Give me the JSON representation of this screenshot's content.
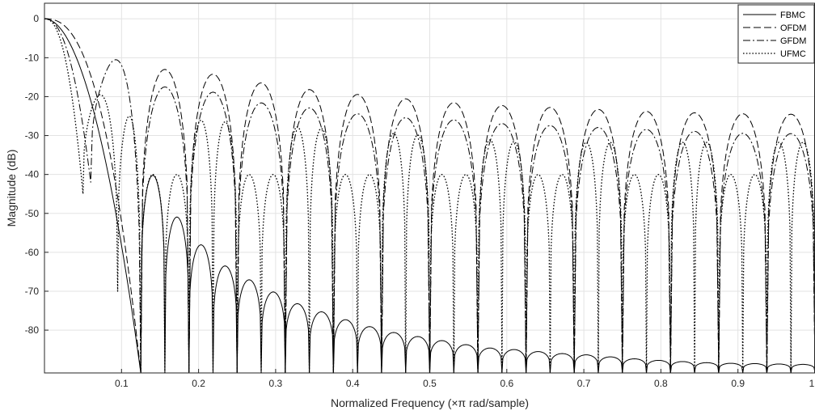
{
  "chart_data": {
    "type": "line",
    "title": "",
    "xlabel": "Normalized Frequency (×π rad/sample)",
    "ylabel": "Magnitude (dB)",
    "xlim": [
      0,
      1
    ],
    "ylim": [
      -91,
      4
    ],
    "grid": true,
    "legend_position": "top-right",
    "x_ticks": [
      0.1,
      0.2,
      0.3,
      0.4,
      0.5,
      0.6,
      0.7,
      0.8,
      0.9,
      1
    ],
    "x_tick_labels": [
      "0.1",
      "0.2",
      "0.3",
      "0.4",
      "0.5",
      "0.6",
      "0.7",
      "0.8",
      "0.9",
      "1"
    ],
    "y_ticks": [
      0,
      -10,
      -20,
      -30,
      -40,
      -50,
      -60,
      -70,
      -80
    ],
    "y_tick_labels": [
      "0",
      "-10",
      "-20",
      "-30",
      "-40",
      "-50",
      "-60",
      "-70",
      "-80"
    ],
    "series": [
      {
        "name": "FBMC",
        "style": "solid",
        "color": "#000000",
        "main_lobe_null": 0.125,
        "null_spacing": 0.03125,
        "sidelobe_peaks": [
          [
            0.14,
            -40
          ],
          [
            0.17,
            -50.5
          ],
          [
            0.2,
            -57.5
          ],
          [
            0.23,
            -63
          ],
          [
            0.265,
            -67
          ],
          [
            0.295,
            -70
          ],
          [
            0.325,
            -73
          ],
          [
            0.355,
            -75
          ],
          [
            0.385,
            -77
          ],
          [
            0.42,
            -79
          ],
          [
            0.45,
            -80.5
          ],
          [
            0.48,
            -81.5
          ],
          [
            0.51,
            -82.5
          ],
          [
            0.54,
            -83.5
          ],
          [
            0.57,
            -84.5
          ],
          [
            0.61,
            -85
          ],
          [
            0.64,
            -85.5
          ],
          [
            0.67,
            -86
          ],
          [
            0.7,
            -86.3
          ],
          [
            0.73,
            -86.8
          ],
          [
            0.76,
            -87.3
          ],
          [
            0.79,
            -87.7
          ],
          [
            0.82,
            -88
          ],
          [
            0.85,
            -88.3
          ],
          [
            0.88,
            -88.5
          ],
          [
            0.92,
            -88.6
          ],
          [
            0.95,
            -88.7
          ],
          [
            0.98,
            -88.8
          ]
        ]
      },
      {
        "name": "OFDM",
        "style": "dashed",
        "color": "#000000",
        "main_lobe_null": 0.125,
        "null_spacing": 0.0625,
        "sidelobe_peaks": [
          [
            0.185,
            -13
          ],
          [
            0.31,
            -17.5
          ],
          [
            0.435,
            -20
          ],
          [
            0.56,
            -22
          ],
          [
            0.685,
            -23
          ],
          [
            0.81,
            -24
          ],
          [
            0.935,
            -24.5
          ]
        ]
      },
      {
        "name": "GFDM",
        "style": "dashdot",
        "color": "#000000",
        "main_lobe_null": 0.06,
        "main_lobe_floor": -42,
        "main_lobe_peak": [
          0.09,
          -10.5
        ],
        "null_spacing": 0.0625,
        "sidelobe_peaks": [
          [
            0.165,
            -17.5
          ],
          [
            0.225,
            -19
          ],
          [
            0.29,
            -22
          ],
          [
            0.35,
            -23
          ],
          [
            0.41,
            -24.5
          ],
          [
            0.475,
            -25.5
          ],
          [
            0.535,
            -26
          ],
          [
            0.6,
            -27
          ],
          [
            0.665,
            -27.5
          ],
          [
            0.73,
            -28
          ],
          [
            0.79,
            -28.5
          ],
          [
            0.855,
            -29
          ],
          [
            0.915,
            -29.5
          ],
          [
            0.975,
            -29.5
          ]
        ]
      },
      {
        "name": "UFMC",
        "style": "dotted",
        "color": "#000000",
        "first_null": 0.05,
        "first_null_floor": -45,
        "second_lobe_peak": [
          0.07,
          -19.5
        ],
        "second_null": 0.095,
        "second_null_floor": -70,
        "null_spacing": 0.03125,
        "sidelobe_peaks_range": [
          -25,
          -40
        ]
      }
    ]
  }
}
